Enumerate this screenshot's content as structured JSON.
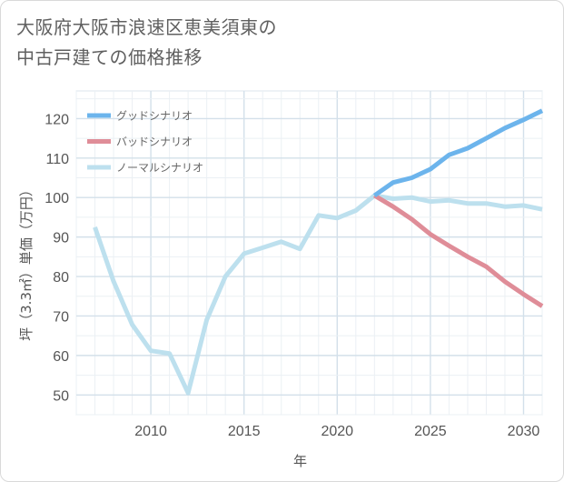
{
  "title_lines": [
    "大阪府大阪市浪速区恵美須東の",
    "中古戸建ての価格推移"
  ],
  "chart_data": {
    "type": "line",
    "title": "大阪府大阪市浪速区恵美須東の中古戸建ての価格推移",
    "xlabel": "年",
    "ylabel": "坪（3.3㎡）単価（万円）",
    "xlim": [
      2006,
      2031
    ],
    "ylim": [
      45,
      127
    ],
    "xticks": [
      2010,
      2015,
      2020,
      2025,
      2030
    ],
    "yticks": [
      50,
      60,
      70,
      80,
      90,
      100,
      110,
      120
    ],
    "grid": true,
    "legend_position": "top-left",
    "series": [
      {
        "name": "グッドシナリオ",
        "color": "#6cb4ec",
        "x": [
          2022,
          2023,
          2024,
          2025,
          2026,
          2027,
          2028,
          2029,
          2030,
          2031
        ],
        "y": [
          100.5,
          103.8,
          105,
          107.2,
          110.8,
          112.5,
          115,
          117.6,
          119.7,
          122
        ]
      },
      {
        "name": "バッドシナリオ",
        "color": "#df8d98",
        "x": [
          2022,
          2023,
          2024,
          2025,
          2026,
          2027,
          2028,
          2029,
          2030,
          2031
        ],
        "y": [
          100.5,
          97.7,
          94.5,
          90.7,
          87.8,
          85,
          82.5,
          78.7,
          75.5,
          72.5
        ]
      },
      {
        "name": "ノーマルシナリオ",
        "color": "#bde0ee",
        "x": [
          2007,
          2008,
          2009,
          2010,
          2011,
          2012,
          2013,
          2014,
          2015,
          2016,
          2017,
          2018,
          2019,
          2020,
          2021,
          2022,
          2023,
          2024,
          2025,
          2026,
          2027,
          2028,
          2029,
          2030,
          2031
        ],
        "y": [
          92.5,
          78.8,
          67.8,
          61.2,
          60.5,
          50.5,
          69,
          80,
          85.8,
          87.3,
          88.8,
          87,
          95.5,
          94.8,
          96.7,
          100.5,
          99.7,
          100,
          99,
          99.3,
          98.5,
          98.5,
          97.7,
          98,
          97
        ]
      }
    ]
  }
}
